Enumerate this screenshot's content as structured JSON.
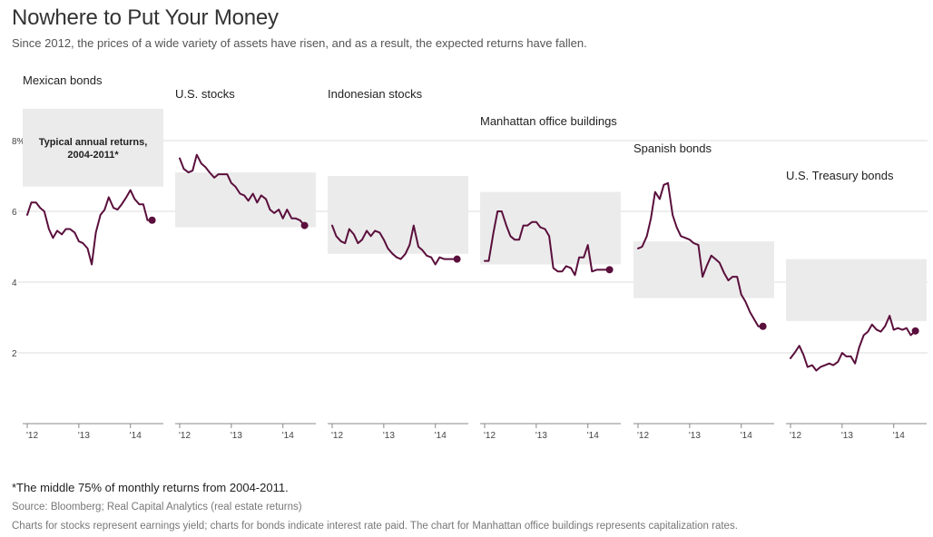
{
  "page": {
    "title": "Nowhere to Put Your Money",
    "subtitle": "Since 2012, the prices of a wide variety of assets have risen, and as a result, the expected returns have fallen.",
    "footnote": "*The middle 75% of monthly returns from 2004-2011.",
    "source": "Source: Bloomberg; Real Capital Analytics (real estate returns)",
    "note": "Charts for stocks represent earnings yield; charts for bonds indicate interest rate paid. The chart for Manhattan office buildings represents capitalization rates."
  },
  "colors": {
    "line": "#5a0f3c",
    "band": "#ebebeb",
    "grid": "#dddddd",
    "axis": "#888888"
  },
  "chart_data": {
    "type": "line",
    "y_ticks": [
      2,
      4,
      6,
      8
    ],
    "y_tick_labels": [
      "2",
      "4",
      "6",
      "8%"
    ],
    "ylim": [
      0,
      8.8
    ],
    "x_ticks": [
      2012,
      2013,
      2014
    ],
    "x_tick_labels": [
      "'12",
      "'13",
      "'14"
    ],
    "xlim": [
      2012,
      2014.55
    ],
    "band_label": "Typical annual returns, 2004-2011*",
    "series": [
      {
        "name": "Mexican bonds",
        "band": [
          6.7,
          8.9
        ],
        "x": [
          2012.0,
          2012.08,
          2012.17,
          2012.25,
          2012.33,
          2012.42,
          2012.5,
          2012.58,
          2012.67,
          2012.75,
          2012.83,
          2012.92,
          2013.0,
          2013.08,
          2013.17,
          2013.25,
          2013.33,
          2013.42,
          2013.5,
          2013.58,
          2013.67,
          2013.75,
          2013.83,
          2013.92,
          2014.0,
          2014.08,
          2014.17,
          2014.25,
          2014.33,
          2014.42
        ],
        "values": [
          5.9,
          6.25,
          6.25,
          6.1,
          6.0,
          5.5,
          5.25,
          5.45,
          5.35,
          5.5,
          5.5,
          5.4,
          5.15,
          5.1,
          4.95,
          4.5,
          5.4,
          5.9,
          6.05,
          6.4,
          6.1,
          6.05,
          6.2,
          6.4,
          6.6,
          6.35,
          6.2,
          6.2,
          5.75,
          5.75
        ]
      },
      {
        "name": "U.S. stocks",
        "band": [
          5.55,
          7.1
        ],
        "x": [
          2012.0,
          2012.08,
          2012.17,
          2012.25,
          2012.33,
          2012.42,
          2012.5,
          2012.58,
          2012.67,
          2012.75,
          2012.83,
          2012.92,
          2013.0,
          2013.08,
          2013.17,
          2013.25,
          2013.33,
          2013.42,
          2013.5,
          2013.58,
          2013.67,
          2013.75,
          2013.83,
          2013.92,
          2014.0,
          2014.08,
          2014.17,
          2014.25,
          2014.33,
          2014.42
        ],
        "values": [
          7.5,
          7.2,
          7.1,
          7.15,
          7.6,
          7.35,
          7.25,
          7.1,
          6.95,
          7.05,
          7.05,
          7.05,
          6.8,
          6.7,
          6.5,
          6.45,
          6.3,
          6.5,
          6.25,
          6.45,
          6.35,
          6.05,
          5.95,
          6.05,
          5.8,
          6.05,
          5.8,
          5.8,
          5.75,
          5.6
        ]
      },
      {
        "name": "Indonesian stocks",
        "band": [
          4.8,
          7.0
        ],
        "x": [
          2012.0,
          2012.08,
          2012.17,
          2012.25,
          2012.33,
          2012.42,
          2012.5,
          2012.58,
          2012.67,
          2012.75,
          2012.83,
          2012.92,
          2013.0,
          2013.08,
          2013.17,
          2013.25,
          2013.33,
          2013.42,
          2013.5,
          2013.58,
          2013.67,
          2013.75,
          2013.83,
          2013.92,
          2014.0,
          2014.08,
          2014.17,
          2014.25,
          2014.33,
          2014.42
        ],
        "values": [
          5.6,
          5.3,
          5.15,
          5.1,
          5.5,
          5.35,
          5.1,
          5.2,
          5.45,
          5.3,
          5.45,
          5.4,
          5.2,
          4.95,
          4.8,
          4.7,
          4.65,
          4.8,
          5.05,
          5.6,
          5.0,
          4.9,
          4.75,
          4.7,
          4.5,
          4.7,
          4.65,
          4.65,
          4.65,
          4.65
        ]
      },
      {
        "name": "Manhattan office buildings",
        "band": [
          4.5,
          6.55
        ],
        "x": [
          2012.0,
          2012.08,
          2012.17,
          2012.25,
          2012.33,
          2012.42,
          2012.5,
          2012.58,
          2012.67,
          2012.75,
          2012.83,
          2012.92,
          2013.0,
          2013.08,
          2013.17,
          2013.25,
          2013.33,
          2013.42,
          2013.5,
          2013.58,
          2013.67,
          2013.75,
          2013.83,
          2013.92,
          2014.0,
          2014.08,
          2014.17,
          2014.25,
          2014.33,
          2014.42
        ],
        "values": [
          4.6,
          4.6,
          5.4,
          6.0,
          6.0,
          5.6,
          5.3,
          5.2,
          5.2,
          5.6,
          5.6,
          5.7,
          5.7,
          5.55,
          5.5,
          5.3,
          4.4,
          4.3,
          4.3,
          4.45,
          4.4,
          4.2,
          4.7,
          4.7,
          5.05,
          4.3,
          4.35,
          4.35,
          4.35,
          4.35
        ]
      },
      {
        "name": "Spanish bonds",
        "band": [
          3.55,
          5.15
        ],
        "x": [
          2012.0,
          2012.08,
          2012.17,
          2012.25,
          2012.33,
          2012.42,
          2012.5,
          2012.58,
          2012.67,
          2012.75,
          2012.83,
          2012.92,
          2013.0,
          2013.08,
          2013.17,
          2013.25,
          2013.33,
          2013.42,
          2013.5,
          2013.58,
          2013.67,
          2013.75,
          2013.83,
          2013.92,
          2014.0,
          2014.08,
          2014.17,
          2014.25,
          2014.33,
          2014.42
        ],
        "values": [
          4.95,
          5.0,
          5.3,
          5.8,
          6.55,
          6.35,
          6.75,
          6.8,
          5.9,
          5.55,
          5.3,
          5.25,
          5.2,
          5.1,
          5.05,
          4.15,
          4.45,
          4.75,
          4.65,
          4.55,
          4.25,
          4.05,
          4.15,
          4.15,
          3.65,
          3.45,
          3.15,
          2.95,
          2.75,
          2.75
        ]
      },
      {
        "name": "U.S. Treasury bonds",
        "band": [
          2.9,
          4.65
        ],
        "x": [
          2012.0,
          2012.08,
          2012.17,
          2012.25,
          2012.33,
          2012.42,
          2012.5,
          2012.58,
          2012.67,
          2012.75,
          2012.83,
          2012.92,
          2013.0,
          2013.08,
          2013.17,
          2013.25,
          2013.33,
          2013.42,
          2013.5,
          2013.58,
          2013.67,
          2013.75,
          2013.83,
          2013.92,
          2014.0,
          2014.08,
          2014.17,
          2014.25,
          2014.33,
          2014.42
        ],
        "values": [
          1.85,
          2.0,
          2.2,
          1.95,
          1.6,
          1.65,
          1.5,
          1.6,
          1.65,
          1.7,
          1.65,
          1.75,
          2.0,
          1.9,
          1.9,
          1.7,
          2.15,
          2.5,
          2.6,
          2.8,
          2.65,
          2.6,
          2.75,
          3.05,
          2.65,
          2.7,
          2.65,
          2.7,
          2.5,
          2.62
        ]
      }
    ]
  }
}
